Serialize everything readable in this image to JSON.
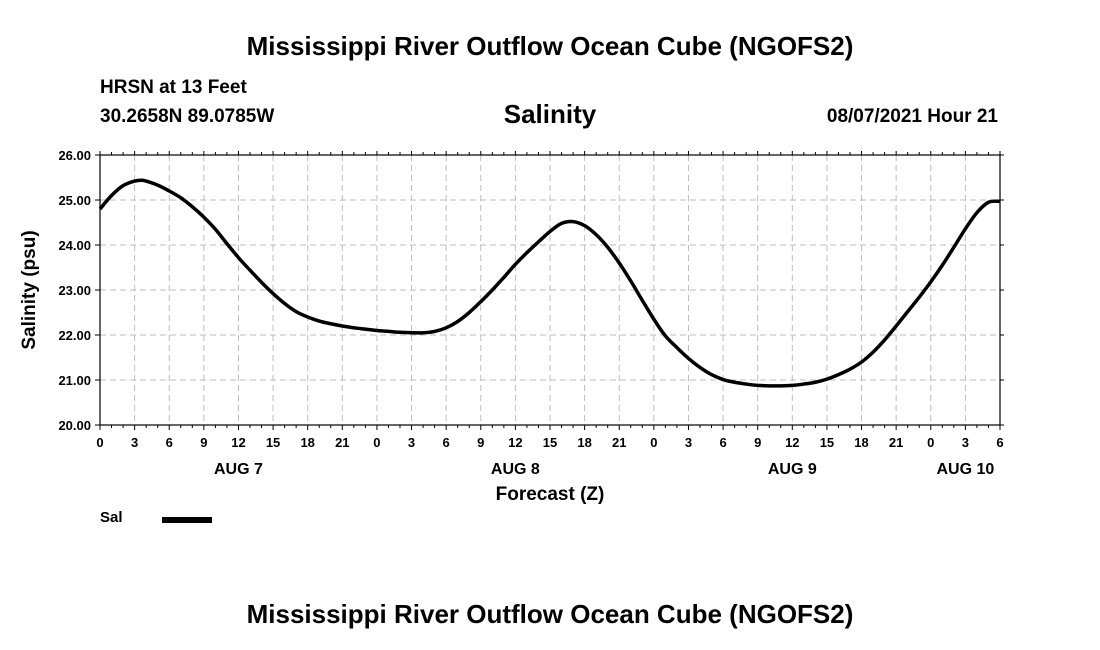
{
  "header": {
    "title": "Mississippi River Outflow Ocean Cube (NGOFS2)",
    "station": "HRSN at 13 Feet",
    "coords": "30.2658N  89.0785W",
    "subtitle": "Salinity",
    "timestamp": "08/07/2021 Hour 21"
  },
  "footer": {
    "title": "Mississippi River Outflow Ocean Cube (NGOFS2)"
  },
  "legend": {
    "label": "Sal",
    "color": "#000000"
  },
  "chart_data": {
    "type": "line",
    "title": "Salinity",
    "xlabel": "Forecast (Z)",
    "ylabel": "Salinity (psu)",
    "ylim": [
      20,
      26
    ],
    "yticks": [
      "20.00",
      "21.00",
      "22.00",
      "23.00",
      "24.00",
      "25.00",
      "26.00"
    ],
    "xlim": [
      0,
      78
    ],
    "x_tick_labels": [
      "0",
      "3",
      "6",
      "9",
      "12",
      "15",
      "18",
      "21",
      "0",
      "3",
      "6",
      "9",
      "12",
      "15",
      "18",
      "21",
      "0",
      "3",
      "6",
      "9",
      "12",
      "15",
      "18",
      "21",
      "0",
      "3",
      "6"
    ],
    "day_labels": [
      {
        "label": "AUG 7",
        "x": 12
      },
      {
        "label": "AUG 8",
        "x": 36
      },
      {
        "label": "AUG 9",
        "x": 60
      },
      {
        "label": "AUG 10",
        "x": 75
      }
    ],
    "grid": true,
    "series": [
      {
        "name": "Sal",
        "x": [
          0,
          1,
          2,
          3,
          3.6,
          4,
          5,
          6,
          7,
          8,
          9,
          10,
          11,
          12,
          13,
          14,
          15,
          16,
          17,
          18,
          19,
          20,
          21,
          22,
          23,
          24,
          25,
          26,
          27,
          28,
          29,
          30,
          31,
          32,
          33,
          34,
          35,
          36,
          37,
          38,
          39,
          40,
          41,
          42,
          43,
          44,
          45,
          46,
          47,
          48,
          49,
          50,
          51,
          52,
          53,
          54,
          55,
          56,
          57,
          58,
          59,
          60,
          61,
          62,
          63,
          64,
          65,
          66,
          67,
          68,
          69,
          70,
          71,
          72,
          73,
          74,
          75,
          76,
          77,
          78
        ],
        "values": [
          24.8,
          25.1,
          25.32,
          25.42,
          25.44,
          25.42,
          25.33,
          25.2,
          25.05,
          24.85,
          24.62,
          24.35,
          24.03,
          23.72,
          23.44,
          23.17,
          22.92,
          22.7,
          22.52,
          22.4,
          22.31,
          22.25,
          22.2,
          22.16,
          22.13,
          22.1,
          22.08,
          22.06,
          22.05,
          22.05,
          22.08,
          22.16,
          22.3,
          22.5,
          22.74,
          23.0,
          23.28,
          23.57,
          23.83,
          24.07,
          24.3,
          24.48,
          24.52,
          24.43,
          24.23,
          23.95,
          23.6,
          23.2,
          22.77,
          22.35,
          21.98,
          21.72,
          21.48,
          21.28,
          21.12,
          21.01,
          20.95,
          20.91,
          20.88,
          20.87,
          20.87,
          20.88,
          20.91,
          20.95,
          21.02,
          21.12,
          21.24,
          21.4,
          21.62,
          21.89,
          22.2,
          22.52,
          22.84,
          23.18,
          23.55,
          23.95,
          24.36,
          24.72,
          24.95,
          24.97
        ]
      }
    ]
  }
}
